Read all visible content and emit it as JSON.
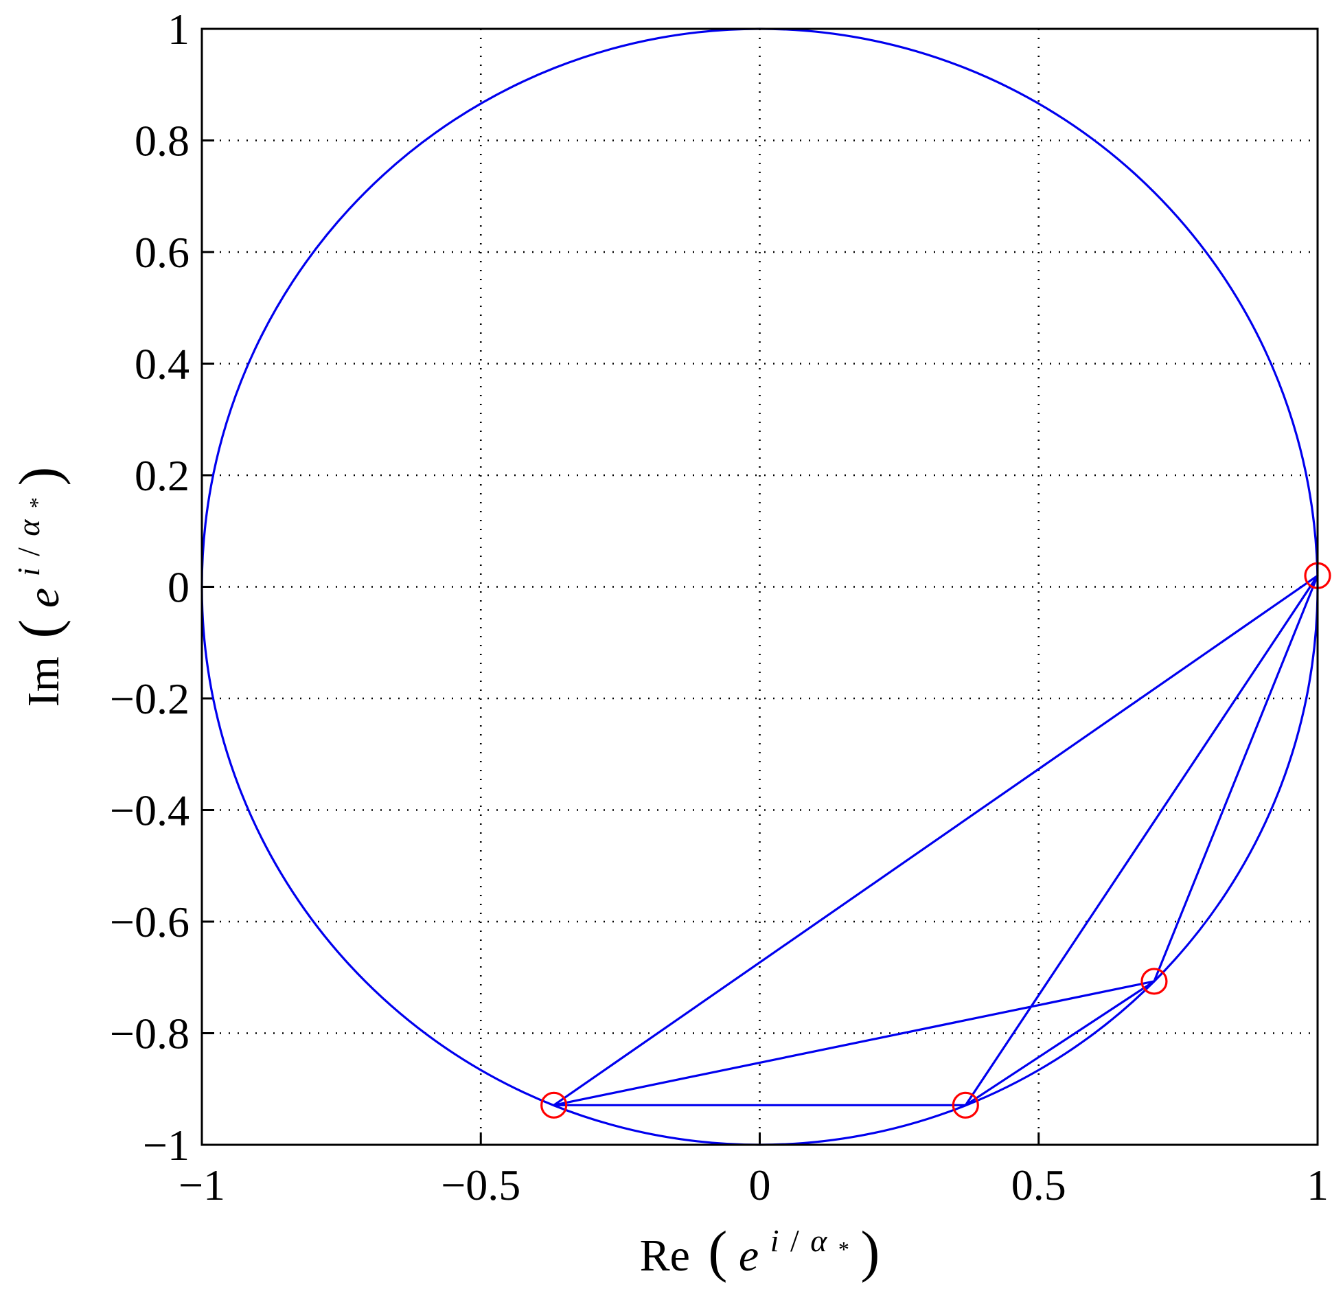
{
  "chart_data": {
    "type": "line",
    "xlabel": {
      "prefix": "Re",
      "open": "(",
      "base": "e",
      "exp_i": "i",
      "exp_slash": "/",
      "exp_alpha": "α",
      "sub": "*",
      "close": ")"
    },
    "ylabel": {
      "prefix": "Im",
      "open": "(",
      "base": "e",
      "exp_i": "i",
      "exp_slash": "/",
      "exp_alpha": "α",
      "sub": "*",
      "close": ")"
    },
    "xlim": [
      -1,
      1
    ],
    "ylim": [
      -1,
      1
    ],
    "grid": true,
    "xticks": [
      {
        "value": -1,
        "label": "−1"
      },
      {
        "value": -0.5,
        "label": "−0.5"
      },
      {
        "value": 0,
        "label": "0"
      },
      {
        "value": 0.5,
        "label": "0.5"
      },
      {
        "value": 1,
        "label": "1"
      }
    ],
    "yticks": [
      {
        "value": 1,
        "label": "1"
      },
      {
        "value": 0.8,
        "label": "0.8"
      },
      {
        "value": 0.6,
        "label": "0.6"
      },
      {
        "value": 0.4,
        "label": "0.4"
      },
      {
        "value": 0.2,
        "label": "0.2"
      },
      {
        "value": 0,
        "label": "0"
      },
      {
        "value": -0.2,
        "label": "−0.2"
      },
      {
        "value": -0.4,
        "label": "−0.4"
      },
      {
        "value": -0.6,
        "label": "−0.6"
      },
      {
        "value": -0.8,
        "label": "−0.8"
      },
      {
        "value": -1,
        "label": "−1"
      }
    ],
    "series": [
      {
        "kind": "unit-circle",
        "color": "#0000ee",
        "center": [
          0,
          0
        ],
        "radius": 1
      },
      {
        "kind": "path",
        "color": "#0000ee",
        "x": [
          1.0,
          -0.369,
          0.707,
          0.369,
          1.0,
          0.707,
          0.369,
          -0.369
        ],
        "y": [
          0.02,
          -0.929,
          -0.707,
          -0.929,
          0.02,
          -0.707,
          -0.929,
          -0.929
        ]
      },
      {
        "kind": "markers",
        "color": "#ff0000",
        "marker": "circle",
        "x": [
          1.0,
          0.707,
          0.369,
          -0.369
        ],
        "y": [
          0.02,
          -0.707,
          -0.929,
          -0.929
        ]
      }
    ]
  }
}
